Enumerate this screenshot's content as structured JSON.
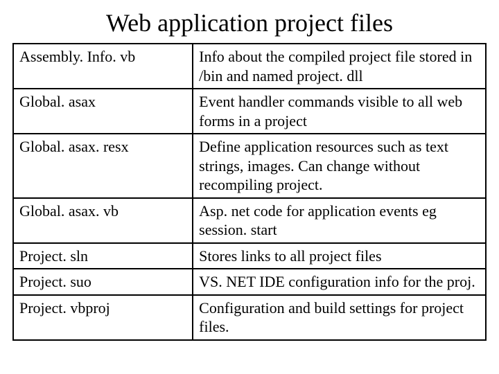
{
  "title": "Web application project files",
  "table": {
    "rows": [
      {
        "file": "Assembly. Info. vb",
        "description": "Info about the compiled project file stored in /bin and named project. dll"
      },
      {
        "file": "Global. asax",
        "description": "Event handler commands visible to all web forms in a project"
      },
      {
        "file": "Global. asax. resx",
        "description": "Define application resources such as text strings, images. Can change without recompiling project."
      },
      {
        "file": "Global. asax. vb",
        "description": "Asp. net code for application events eg session. start"
      },
      {
        "file": "Project. sln",
        "description": "Stores links to all project files"
      },
      {
        "file": "Project. suo",
        "description": "VS. NET IDE configuration info for the proj."
      },
      {
        "file": "Project. vbproj",
        "description": "Configuration and build settings for project files."
      }
    ]
  },
  "style": {
    "background_color": "#ffffff",
    "text_color": "#000000",
    "border_color": "#000000",
    "title_fontsize": 36,
    "cell_fontsize": 22,
    "font_family": "Times New Roman"
  }
}
